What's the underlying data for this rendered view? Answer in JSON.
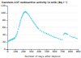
{
  "chart_data": {
    "type": "scatter",
    "title": "Caesium-137 radioactive activity in milk (Bq l⁻¹)",
    "xlabel": "Number of days after deposit",
    "color": "#5bcfee",
    "grid": true,
    "xlim": [
      0,
      900
    ],
    "ylim": [
      0,
      120
    ],
    "xticks": [
      0,
      100,
      200,
      300,
      400,
      500,
      600,
      700,
      800,
      900
    ],
    "yticks": [
      0,
      20,
      40,
      60,
      80,
      100,
      120
    ],
    "x": [
      5,
      10,
      15,
      20,
      25,
      30,
      35,
      40,
      45,
      50,
      55,
      60,
      65,
      70,
      75,
      80,
      85,
      90,
      95,
      100,
      110,
      115,
      120,
      125,
      130,
      140,
      150,
      155,
      160,
      165,
      170,
      175,
      180,
      185,
      190,
      195,
      200,
      205,
      210,
      215,
      220,
      225,
      230,
      235,
      240,
      245,
      250,
      260,
      270,
      280,
      290,
      300,
      310,
      320,
      330,
      340,
      350,
      360,
      370,
      380,
      390,
      400,
      420,
      440,
      460,
      480,
      500,
      520,
      540,
      560,
      580,
      600,
      620,
      640,
      660,
      680,
      700,
      720,
      730,
      740,
      750,
      760,
      770,
      800,
      820,
      840,
      860,
      880,
      900
    ],
    "values": [
      20,
      22,
      23,
      22,
      24,
      23,
      25,
      24,
      26,
      25,
      27,
      26,
      28,
      27,
      29,
      28,
      30,
      29,
      32,
      31,
      35,
      38,
      40,
      44,
      48,
      55,
      62,
      66,
      70,
      74,
      78,
      82,
      86,
      88,
      91,
      93,
      96,
      98,
      100,
      101,
      102,
      103,
      103,
      103,
      102,
      101,
      100,
      98,
      95,
      92,
      89,
      86,
      83,
      79,
      76,
      73,
      70,
      67,
      64,
      61,
      58,
      56,
      52,
      49,
      47,
      45,
      43,
      41,
      39,
      37,
      35,
      33,
      32,
      30,
      29,
      27,
      26,
      40,
      43,
      44,
      43,
      42,
      41,
      36,
      34,
      33,
      32,
      30,
      29
    ]
  }
}
